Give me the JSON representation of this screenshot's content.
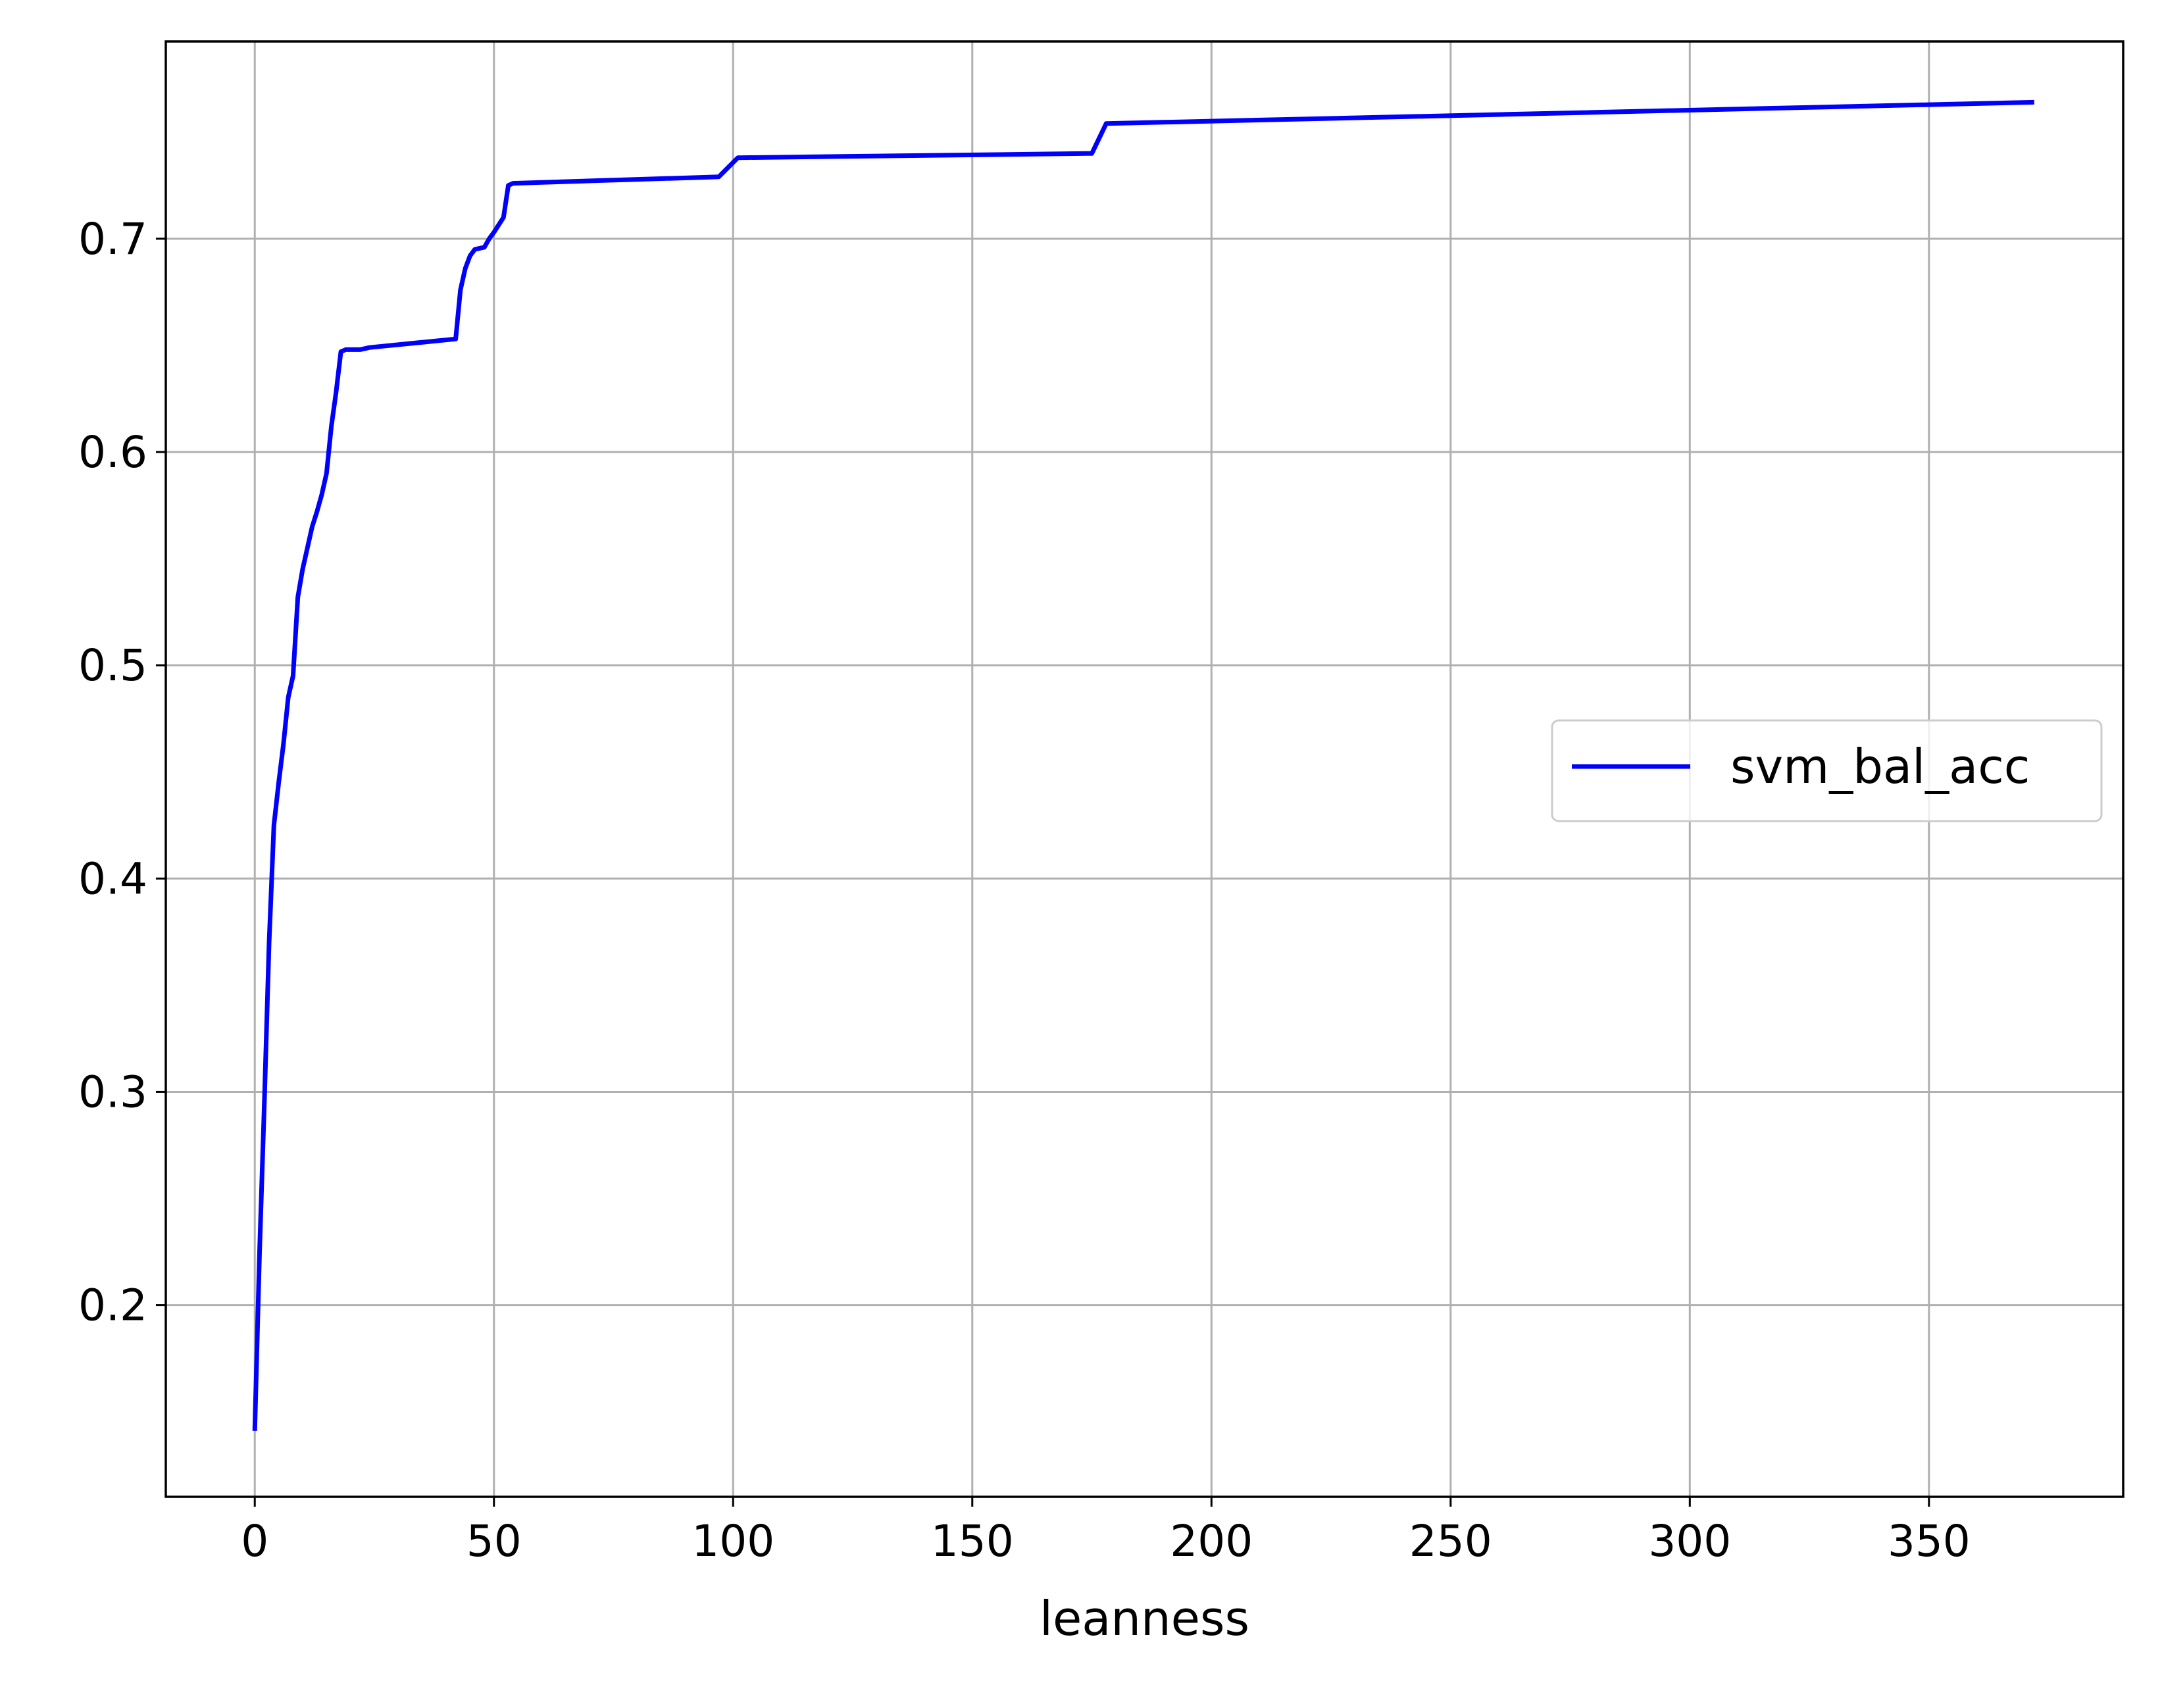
{
  "chart_data": {
    "type": "line",
    "title": "",
    "xlabel": "leanness",
    "ylabel": "",
    "xlim": [
      -18.6,
      390.6
    ],
    "ylim": [
      0.1101,
      0.7925
    ],
    "xticks": [
      0,
      50,
      100,
      150,
      200,
      250,
      300,
      350
    ],
    "yticks": [
      0.2,
      0.3,
      0.4,
      0.5,
      0.6,
      0.7
    ],
    "xtick_labels": [
      "0",
      "50",
      "100",
      "150",
      "200",
      "250",
      "300",
      "350"
    ],
    "ytick_labels": [
      "0.2",
      "0.3",
      "0.4",
      "0.5",
      "0.6",
      "0.7"
    ],
    "grid": true,
    "legend_position": "center-right",
    "series": [
      {
        "name": "svm_bal_acc",
        "color": "#0000ff",
        "x": [
          0,
          1,
          2,
          3,
          4,
          5,
          6,
          7,
          8,
          9,
          10,
          11,
          12,
          13,
          14,
          15,
          16,
          17,
          18,
          19,
          20,
          21,
          22,
          24,
          42,
          43,
          44,
          45,
          46,
          48,
          49,
          50,
          52,
          53,
          54,
          97,
          101,
          175,
          178,
          372
        ],
        "y": [
          0.141,
          0.225,
          0.295,
          0.37,
          0.425,
          0.445,
          0.463,
          0.485,
          0.495,
          0.532,
          0.545,
          0.555,
          0.565,
          0.572,
          0.58,
          0.59,
          0.612,
          0.628,
          0.647,
          0.648,
          0.648,
          0.648,
          0.648,
          0.649,
          0.653,
          0.676,
          0.686,
          0.692,
          0.695,
          0.696,
          0.7,
          0.703,
          0.71,
          0.725,
          0.726,
          0.729,
          0.738,
          0.74,
          0.754,
          0.764
        ]
      }
    ]
  }
}
